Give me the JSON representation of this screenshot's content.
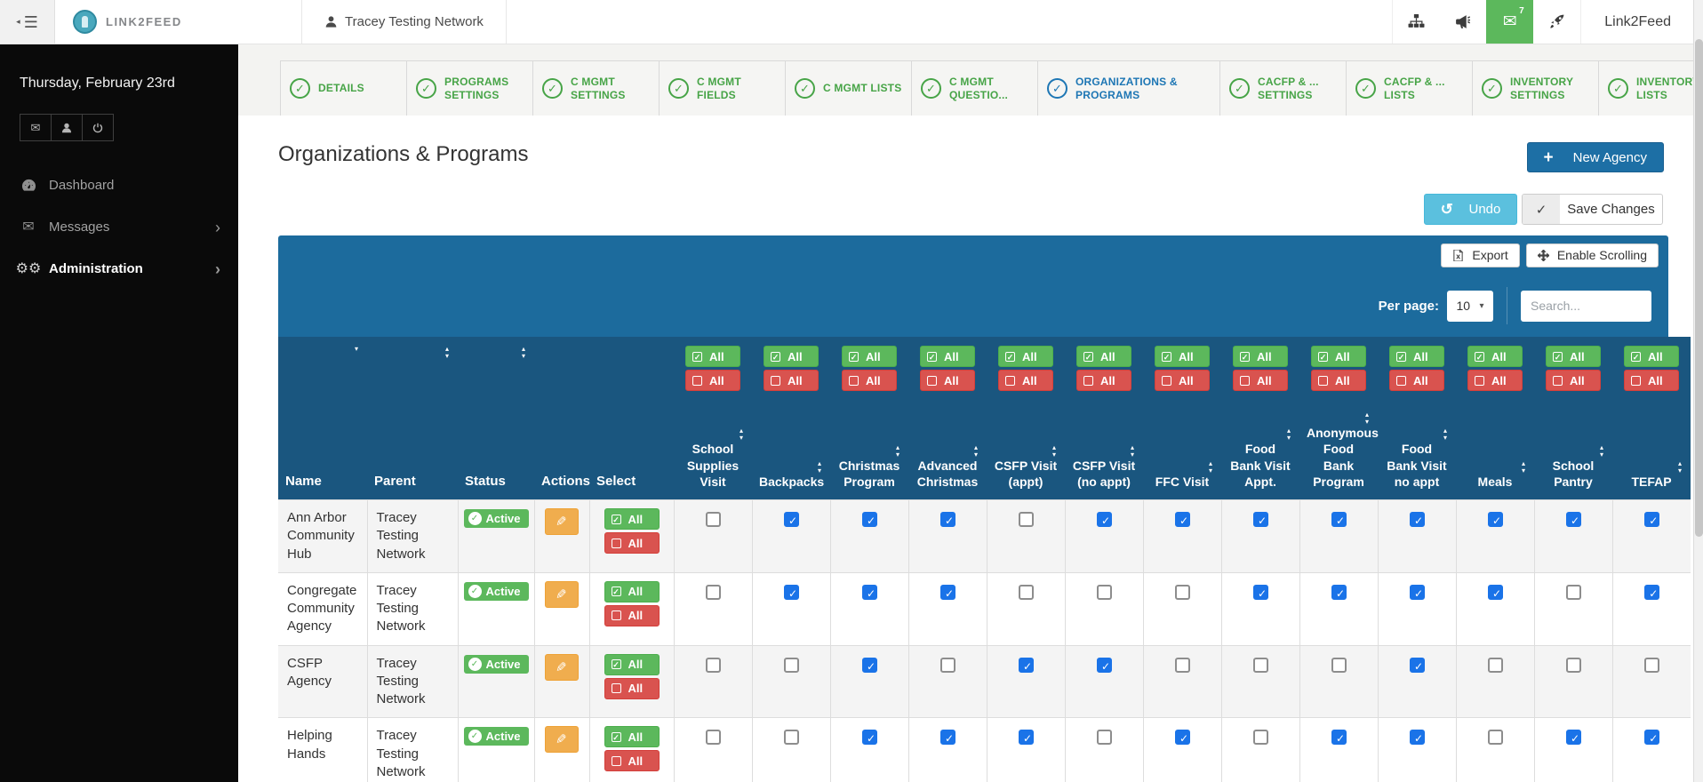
{
  "topbar": {
    "brand": "LINK2FEED",
    "user": "Tracey Testing Network",
    "network_label": "Link2Feed",
    "messages_badge": "7"
  },
  "sidebar": {
    "date": "Thursday, February 23rd",
    "items": [
      {
        "label": "Dashboard"
      },
      {
        "label": "Messages"
      },
      {
        "label": "Administration"
      }
    ]
  },
  "tabs": [
    {
      "label": "DETAILS",
      "active": false
    },
    {
      "label": "PROGRAMS SETTINGS",
      "active": false
    },
    {
      "label": "C MGMT SETTINGS",
      "active": false
    },
    {
      "label": "C MGMT FIELDS",
      "active": false
    },
    {
      "label": "C MGMT LISTS",
      "active": false
    },
    {
      "label": "C MGMT QUESTIO...",
      "active": false
    },
    {
      "label": "ORGANIZATIONS & PROGRAMS",
      "active": true
    },
    {
      "label": "CACFP & ... SETTINGS",
      "active": false
    },
    {
      "label": "CACFP & ... LISTS",
      "active": false
    },
    {
      "label": "INVENTORY SETTINGS",
      "active": false
    },
    {
      "label": "INVENTORY LISTS",
      "active": false
    }
  ],
  "page": {
    "title": "Organizations & Programs",
    "new_agency_label": "New Agency",
    "undo_label": "Undo",
    "save_label": "Save Changes",
    "export_label": "Export",
    "enable_scrolling_label": "Enable Scrolling",
    "per_page_label": "Per page:",
    "per_page_value": "10",
    "search_placeholder": "Search..."
  },
  "table": {
    "meta_columns": [
      "Name",
      "Parent",
      "Status",
      "Actions",
      "Select"
    ],
    "select_all_label": "All",
    "deselect_all_label": "All",
    "program_columns": [
      "School Supplies Visit",
      "Backpacks",
      "Christmas Program",
      "Advanced Christmas",
      "CSFP Visit (appt)",
      "CSFP Visit (no appt)",
      "FFC Visit",
      "Food Bank Visit Appt.",
      "Anonymous Food Bank Program",
      "Food Bank Visit no appt",
      "Meals",
      "School Pantry",
      "TEFAP"
    ],
    "rows": [
      {
        "name": "Ann Arbor Community Hub",
        "parent": "Tracey Testing Network",
        "status": "Active",
        "checks": [
          false,
          true,
          true,
          true,
          false,
          true,
          true,
          true,
          true,
          true,
          true,
          true,
          true
        ]
      },
      {
        "name": "Congregate Community Agency",
        "parent": "Tracey Testing Network",
        "status": "Active",
        "checks": [
          false,
          true,
          true,
          true,
          false,
          false,
          false,
          true,
          true,
          true,
          true,
          false,
          true
        ]
      },
      {
        "name": "CSFP Agency",
        "parent": "Tracey Testing Network",
        "status": "Active",
        "checks": [
          false,
          false,
          true,
          false,
          true,
          true,
          false,
          false,
          false,
          true,
          false,
          false,
          false
        ]
      },
      {
        "name": "Helping Hands",
        "parent": "Tracey Testing Network",
        "status": "Active",
        "checks": [
          false,
          false,
          true,
          true,
          true,
          false,
          true,
          false,
          true,
          true,
          false,
          true,
          true
        ]
      }
    ]
  },
  "colors": {
    "band_blue": "#1c6b9d",
    "header_blue": "#1a567f",
    "primary_button_blue": "#1d6fa5",
    "success_green": "#5cb85c",
    "danger_red": "#d9534f",
    "warning_orange": "#f0ad4e",
    "info_cyan": "#5bc0de",
    "checkbox_blue": "#1a73e8",
    "tab_green": "#47a447",
    "tab_active_blue": "#1d76b4"
  }
}
